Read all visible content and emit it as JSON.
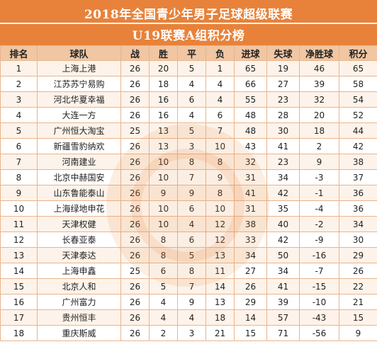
{
  "title": "2018年全国青少年男子足球超级联赛",
  "subtitle": "U19联赛A组积分榜",
  "headers": [
    "排名",
    "球队",
    "战",
    "胜",
    "平",
    "负",
    "进球",
    "失球",
    "净胜球",
    "积分"
  ],
  "rows": [
    [
      "1",
      "上海上港",
      "26",
      "20",
      "5",
      "1",
      "65",
      "19",
      "46",
      "65"
    ],
    [
      "2",
      "江苏苏宁易购",
      "26",
      "18",
      "4",
      "4",
      "66",
      "27",
      "39",
      "58"
    ],
    [
      "3",
      "河北华夏幸福",
      "26",
      "16",
      "6",
      "4",
      "55",
      "23",
      "32",
      "54"
    ],
    [
      "4",
      "大连一方",
      "26",
      "16",
      "4",
      "6",
      "48",
      "28",
      "20",
      "52"
    ],
    [
      "5",
      "广州恒大淘宝",
      "25",
      "13",
      "5",
      "7",
      "48",
      "30",
      "18",
      "44"
    ],
    [
      "6",
      "新疆雪豹纳欢",
      "26",
      "13",
      "3",
      "10",
      "43",
      "41",
      "2",
      "42"
    ],
    [
      "7",
      "河南建业",
      "26",
      "10",
      "8",
      "8",
      "32",
      "23",
      "9",
      "38"
    ],
    [
      "8",
      "北京中赫国安",
      "26",
      "10",
      "7",
      "9",
      "31",
      "34",
      "-3",
      "37"
    ],
    [
      "9",
      "山东鲁能泰山",
      "26",
      "9",
      "9",
      "8",
      "41",
      "42",
      "-1",
      "36"
    ],
    [
      "10",
      "上海绿地申花",
      "26",
      "10",
      "6",
      "10",
      "31",
      "35",
      "-4",
      "36"
    ],
    [
      "11",
      "天津权健",
      "26",
      "10",
      "4",
      "12",
      "38",
      "40",
      "-2",
      "34"
    ],
    [
      "12",
      "长春亚泰",
      "26",
      "8",
      "6",
      "12",
      "33",
      "42",
      "-9",
      "30"
    ],
    [
      "13",
      "天津泰达",
      "26",
      "8",
      "5",
      "13",
      "34",
      "50",
      "-16",
      "29"
    ],
    [
      "14",
      "上海申鑫",
      "25",
      "6",
      "8",
      "11",
      "27",
      "34",
      "-7",
      "26"
    ],
    [
      "15",
      "北京人和",
      "26",
      "5",
      "7",
      "14",
      "26",
      "41",
      "-15",
      "22"
    ],
    [
      "16",
      "广州富力",
      "26",
      "4",
      "9",
      "13",
      "29",
      "39",
      "-10",
      "21"
    ],
    [
      "17",
      "贵州恒丰",
      "26",
      "4",
      "4",
      "18",
      "14",
      "57",
      "-43",
      "15"
    ],
    [
      "18",
      "重庆斯威",
      "26",
      "2",
      "3",
      "21",
      "15",
      "71",
      "-56",
      "9"
    ]
  ],
  "colors": {
    "header_bar": "#e8823a",
    "column_header": "#f0c6a3",
    "row_alt": "#fdf3ea",
    "border": "#e9b48c"
  }
}
